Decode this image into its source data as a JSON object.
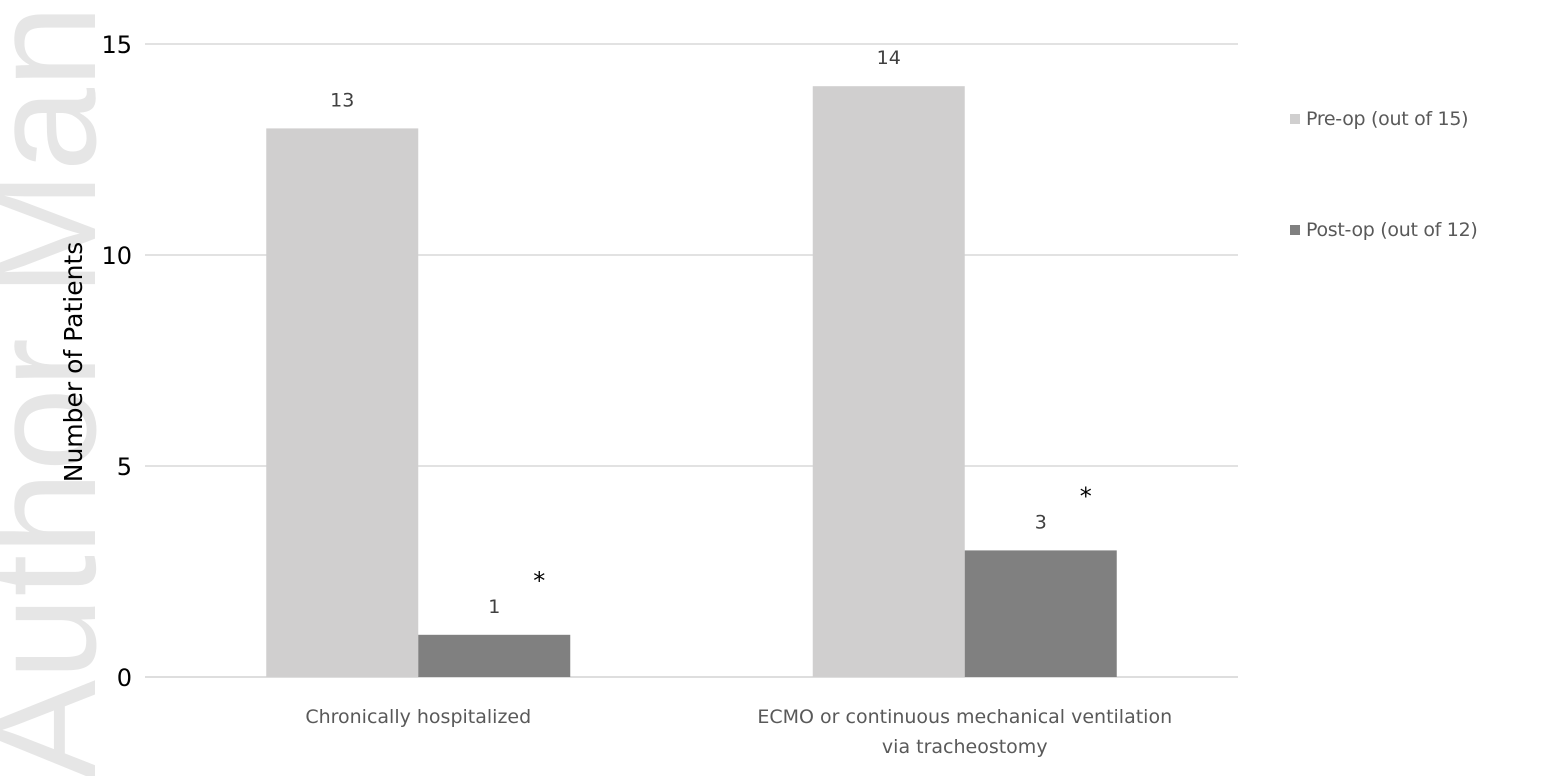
{
  "watermark": "Author Manuscript",
  "chart_data": {
    "type": "bar",
    "categories": [
      "Chronically hospitalized",
      "ECMO or continuous mechanical ventilation via tracheostomy"
    ],
    "category_lines": [
      [
        "Chronically hospitalized"
      ],
      [
        "ECMO or continuous mechanical ventilation",
        "via tracheostomy"
      ]
    ],
    "series": [
      {
        "name": "Pre-op (out of 15)",
        "values": [
          13,
          14
        ],
        "color": "#d0cfcf"
      },
      {
        "name": "Post-op (out of 12)",
        "values": [
          1,
          3
        ],
        "color": "#808080"
      }
    ],
    "significance_marker": "*",
    "significant": [
      false,
      true
    ],
    "ylabel": "Number of Patients",
    "xlabel": "",
    "ylim": [
      0,
      15
    ],
    "yticks": [
      0,
      5,
      10,
      15
    ],
    "grid": true,
    "legend_position": "right"
  }
}
